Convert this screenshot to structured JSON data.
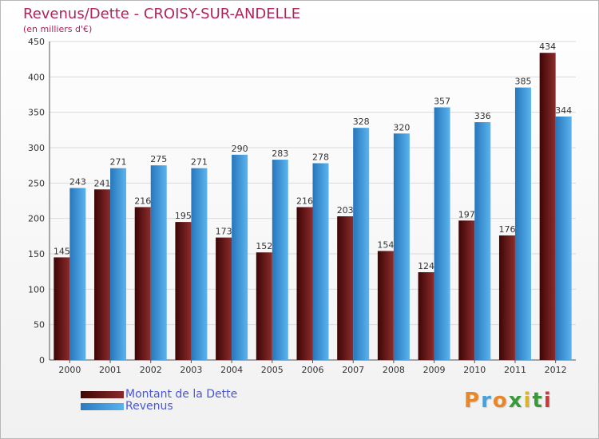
{
  "title": "Revenus/Dette - CROISY-SUR-ANDELLE",
  "subtitle": "(en milliers d'€)",
  "colors": {
    "dette": "#7a1d1d",
    "revenus": "#3f9fe0",
    "title": "#b0245c",
    "legend_text": "#4b56d8",
    "grid": "#dadada"
  },
  "chart_data": {
    "type": "bar",
    "categories": [
      "2000",
      "2001",
      "2002",
      "2003",
      "2004",
      "2005",
      "2006",
      "2007",
      "2008",
      "2009",
      "2010",
      "2011",
      "2012"
    ],
    "series": [
      {
        "name": "Montant de la Dette",
        "values": [
          145,
          241,
          216,
          195,
          173,
          152,
          216,
          203,
          154,
          124,
          197,
          176,
          434
        ]
      },
      {
        "name": "Revenus",
        "values": [
          243,
          271,
          275,
          271,
          290,
          283,
          278,
          328,
          320,
          357,
          336,
          385,
          344
        ]
      }
    ],
    "ylim": [
      0,
      450
    ],
    "yticks": [
      0,
      50,
      100,
      150,
      200,
      250,
      300,
      350,
      400,
      450
    ],
    "grid": true,
    "legend": "bottom-left"
  },
  "legend": {
    "items": [
      {
        "label": "Montant de la Dette"
      },
      {
        "label": "Revenus"
      }
    ]
  },
  "brand": {
    "letters": [
      "P",
      "r",
      "o",
      "x",
      "i",
      "t",
      "i"
    ],
    "colors": [
      "#e8862a",
      "#4aa0d8",
      "#e8862a",
      "#3a9a3a",
      "#d8b42a",
      "#3a9a3a",
      "#c83a3a"
    ]
  }
}
